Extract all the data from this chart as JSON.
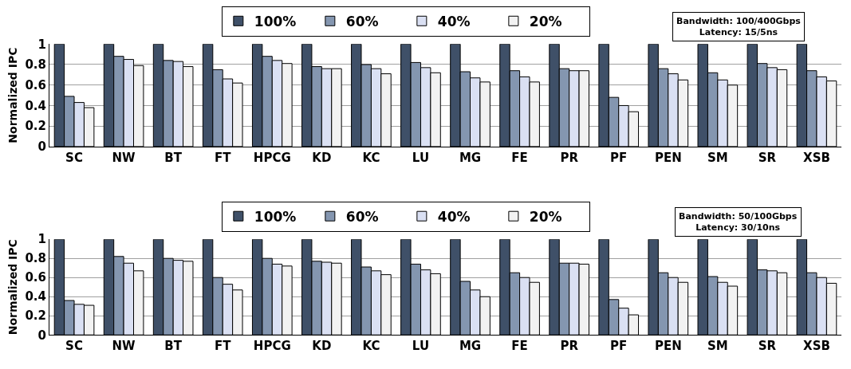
{
  "chart_data": [
    {
      "type": "bar",
      "ylabel": "Normalized IPC",
      "categories": [
        "SC",
        "NW",
        "BT",
        "FT",
        "HPCG",
        "KD",
        "KC",
        "LU",
        "MG",
        "FE",
        "PR",
        "PF",
        "PEN",
        "SM",
        "SR",
        "XSB"
      ],
      "series": [
        {
          "name": "100%",
          "color": "#3f5068",
          "values": [
            1,
            1,
            1,
            1,
            1,
            1,
            1,
            1,
            1,
            1,
            1,
            1,
            1,
            1,
            1,
            1
          ]
        },
        {
          "name": "60%",
          "color": "#8496b0",
          "values": [
            0.49,
            0.88,
            0.84,
            0.75,
            0.88,
            0.78,
            0.8,
            0.82,
            0.73,
            0.74,
            0.76,
            0.48,
            0.76,
            0.72,
            0.81,
            0.74
          ]
        },
        {
          "name": "40%",
          "color": "#dae0f3",
          "values": [
            0.43,
            0.85,
            0.83,
            0.66,
            0.84,
            0.76,
            0.76,
            0.77,
            0.67,
            0.68,
            0.74,
            0.4,
            0.71,
            0.65,
            0.77,
            0.68
          ]
        },
        {
          "name": "20%",
          "color": "#f2f2f2",
          "values": [
            0.38,
            0.79,
            0.78,
            0.62,
            0.81,
            0.76,
            0.71,
            0.72,
            0.63,
            0.63,
            0.74,
            0.34,
            0.65,
            0.6,
            0.75,
            0.64
          ]
        }
      ],
      "ylim": [
        0,
        1
      ],
      "yticks": [
        0,
        {
          "value": 0.2,
          "label": "0.2"
        },
        {
          "value": 0.4,
          "label": "0.4"
        },
        {
          "value": 0.6,
          "label": "0.6"
        },
        {
          "value": 0.8,
          "label": "0.8"
        },
        1
      ],
      "grid": "y",
      "legend": "top",
      "annotations": [
        "Bandwidth: 100/400Gbps\nLatency: 15/5ns"
      ]
    },
    {
      "type": "bar",
      "ylabel": "Normalized IPC",
      "categories": [
        "SC",
        "NW",
        "BT",
        "FT",
        "HPCG",
        "KD",
        "KC",
        "LU",
        "MG",
        "FE",
        "PR",
        "PF",
        "PEN",
        "SM",
        "SR",
        "XSB"
      ],
      "series": [
        {
          "name": "100%",
          "color": "#3f5068",
          "values": [
            1,
            1,
            1,
            1,
            1,
            1,
            1,
            1,
            1,
            1,
            1,
            1,
            1,
            1,
            1,
            1
          ]
        },
        {
          "name": "60%",
          "color": "#8496b0",
          "values": [
            0.36,
            0.82,
            0.8,
            0.6,
            0.8,
            0.77,
            0.71,
            0.74,
            0.56,
            0.65,
            0.75,
            0.37,
            0.65,
            0.61,
            0.68,
            0.65
          ]
        },
        {
          "name": "40%",
          "color": "#dae0f3",
          "values": [
            0.32,
            0.75,
            0.78,
            0.53,
            0.74,
            0.76,
            0.67,
            0.68,
            0.47,
            0.6,
            0.75,
            0.28,
            0.6,
            0.55,
            0.67,
            0.6
          ]
        },
        {
          "name": "20%",
          "color": "#f2f2f2",
          "values": [
            0.31,
            0.67,
            0.77,
            0.47,
            0.72,
            0.75,
            0.63,
            0.64,
            0.4,
            0.55,
            0.74,
            0.21,
            0.55,
            0.51,
            0.65,
            0.54
          ]
        }
      ],
      "ylim": [
        0,
        1
      ],
      "yticks": [
        0,
        {
          "value": 0.2,
          "label": "0.2"
        },
        {
          "value": 0.4,
          "label": "0.4"
        },
        {
          "value": 0.6,
          "label": "0.6"
        },
        {
          "value": 0.8,
          "label": "0.8"
        },
        1
      ],
      "grid": "y",
      "legend": "top",
      "annotations": [
        "Bandwidth: 50/100Gbps\nLatency: 30/10ns"
      ]
    }
  ]
}
